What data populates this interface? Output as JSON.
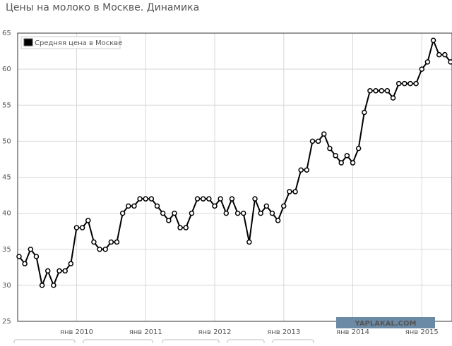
{
  "chart_data": {
    "type": "line",
    "title": "Цены на молоко в Москве. Динамика",
    "watermark": "YAPLAKAL.COM",
    "categories": [
      null,
      null,
      null,
      null,
      null,
      null,
      null,
      null,
      null,
      null,
      "янв 2010",
      null,
      null,
      null,
      null,
      null,
      null,
      null,
      null,
      null,
      null,
      null,
      "янв 2011",
      null,
      null,
      null,
      null,
      null,
      null,
      null,
      null,
      null,
      null,
      null,
      "янв 2012",
      null,
      null,
      null,
      null,
      null,
      null,
      null,
      null,
      null,
      null,
      null,
      "янв 2013",
      null,
      null,
      null,
      null,
      null,
      null,
      null,
      null,
      null,
      null,
      null,
      "янв 2014",
      null,
      null,
      null,
      null,
      null,
      null,
      null,
      null,
      null,
      null,
      null,
      "янв 2015",
      null,
      null,
      null,
      null,
      null
    ],
    "series": [
      {
        "name": "Средняя цена в Москве",
        "color": "#000000",
        "values": [
          34,
          33,
          35,
          34,
          30,
          32,
          30,
          32,
          32,
          33,
          38,
          38,
          39,
          36,
          35,
          35,
          36,
          36,
          40,
          41,
          41,
          42,
          42,
          42,
          41,
          40,
          39,
          40,
          38,
          38,
          40,
          42,
          42,
          42,
          41,
          42,
          40,
          42,
          40,
          40,
          36,
          42,
          40,
          41,
          40,
          39,
          41,
          43,
          43,
          46,
          46,
          50,
          50,
          51,
          49,
          48,
          47,
          48,
          47,
          49,
          54,
          57,
          57,
          57,
          57,
          56,
          58,
          58,
          58,
          58,
          60,
          61,
          64,
          62,
          62,
          61
        ]
      }
    ],
    "ylim": [
      25,
      65
    ],
    "yticks": [
      25,
      30,
      35,
      40,
      45,
      50,
      55,
      60,
      65
    ],
    "grid": true,
    "legend": "top-left"
  }
}
